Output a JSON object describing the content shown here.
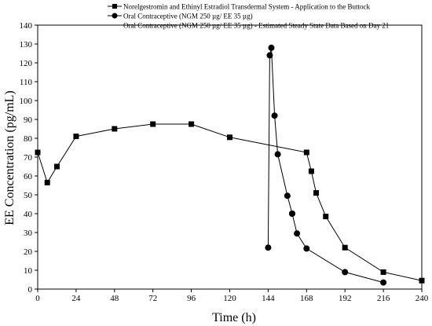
{
  "chart_data": {
    "type": "line",
    "xlabel": "Time (h)",
    "ylabel": "EE Concentration (pg/mL)",
    "xlim": [
      0,
      240
    ],
    "ylim": [
      0,
      140
    ],
    "xticks": [
      0,
      24,
      48,
      72,
      96,
      120,
      144,
      168,
      192,
      216,
      240
    ],
    "yticks": [
      0,
      10,
      20,
      30,
      40,
      50,
      60,
      70,
      80,
      90,
      100,
      110,
      120,
      130,
      140
    ],
    "grid": false,
    "legend_position": "top-right",
    "series": [
      {
        "name": "Norelgestromin and Ethinyl Estradiol Transdermal System - Application to the Buttock",
        "marker": "square",
        "color": "#000000",
        "x": [
          0,
          6,
          12,
          24,
          48,
          72,
          96,
          120,
          168,
          171,
          174,
          180,
          192,
          216,
          240
        ],
        "y": [
          72.5,
          56.5,
          65,
          81,
          85,
          87.5,
          87.5,
          80.5,
          72.5,
          62.5,
          51,
          38.5,
          22,
          9,
          4.5
        ]
      },
      {
        "name": "Oral Contraceptive (NGM 250 µg/ EE 35 µg)",
        "marker": "circle",
        "color": "#000000",
        "x": [
          144,
          145,
          146,
          148,
          150,
          156,
          159
        ],
        "y": [
          22,
          124,
          128,
          92,
          71.5,
          49.5,
          40
        ]
      },
      {
        "name": "Oral Contraceptive (NGM 250 µg/ EE 35 µg) - Estimated Steady State Data Based on Day 21",
        "marker": "circle",
        "color": "#000000",
        "x": [
          159,
          162,
          168,
          192,
          216
        ],
        "y": [
          40,
          29.5,
          21.5,
          9,
          3.5
        ]
      }
    ],
    "legend": {
      "line1": "Norelgestromin and Ethinyl Estradiol Transdermal System - Application to the Buttock",
      "line2": "Oral Contraceptive (NGM 250 µg/ EE 35 µg)",
      "line3": "Oral Contraceptive (NGM 250 µg/ EE 35 µg) - Estimated Steady State Data Based on Day 21"
    }
  }
}
